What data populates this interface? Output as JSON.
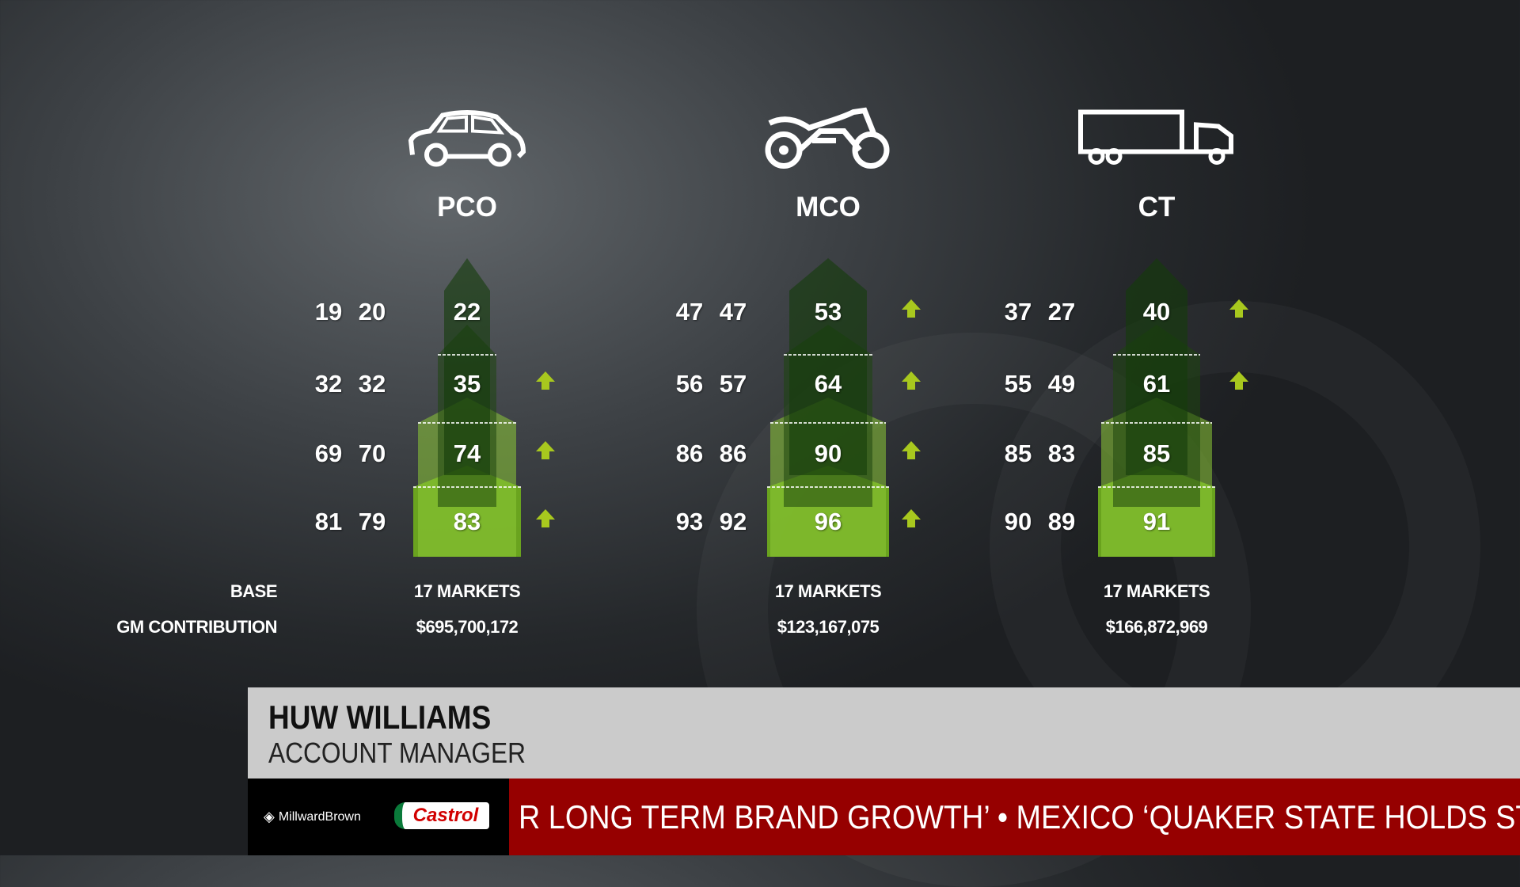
{
  "categories": [
    {
      "id": "pco",
      "label": "PCO",
      "icon": "car-icon",
      "base": "17 MARKETS",
      "gm": "$695,700,172",
      "rows": [
        {
          "a": "19",
          "b": "20",
          "c": "22",
          "up": false
        },
        {
          "a": "32",
          "b": "32",
          "c": "35",
          "up": true
        },
        {
          "a": "69",
          "b": "70",
          "c": "74",
          "up": true
        },
        {
          "a": "81",
          "b": "79",
          "c": "83",
          "up": true
        }
      ]
    },
    {
      "id": "mco",
      "label": "MCO",
      "icon": "motorcycle-icon",
      "base": "17 MARKETS",
      "gm": "$123,167,075",
      "rows": [
        {
          "a": "47",
          "b": "47",
          "c": "53",
          "up": true
        },
        {
          "a": "56",
          "b": "57",
          "c": "64",
          "up": true
        },
        {
          "a": "86",
          "b": "86",
          "c": "90",
          "up": true
        },
        {
          "a": "93",
          "b": "92",
          "c": "96",
          "up": true
        }
      ]
    },
    {
      "id": "ct",
      "label": "CT",
      "icon": "truck-icon",
      "base": "17 MARKETS",
      "gm": "$166,872,969",
      "rows": [
        {
          "a": "37",
          "b": "27",
          "c": "40",
          "up": true
        },
        {
          "a": "55",
          "b": "49",
          "c": "61",
          "up": true
        },
        {
          "a": "85",
          "b": "83",
          "c": "85",
          "up": false
        },
        {
          "a": "90",
          "b": "89",
          "c": "91",
          "up": false
        }
      ]
    }
  ],
  "labels": {
    "base": "BASE",
    "gm": "GM CONTRIBUTION"
  },
  "lower_third": {
    "name": "HUW WILLIAMS",
    "role": "ACCOUNT MANAGER"
  },
  "logos": {
    "millward": "MillwardBrown",
    "castrol": "Castrol"
  },
  "ticker": {
    "text": "R LONG TERM BRAND GROWTH’   •   MEXICO ‘QUAKER STATE HOLDS ST"
  },
  "colors": {
    "arrow": "#a8c81e",
    "ticker": "#960000",
    "lower_third": "#cbcbcb"
  }
}
